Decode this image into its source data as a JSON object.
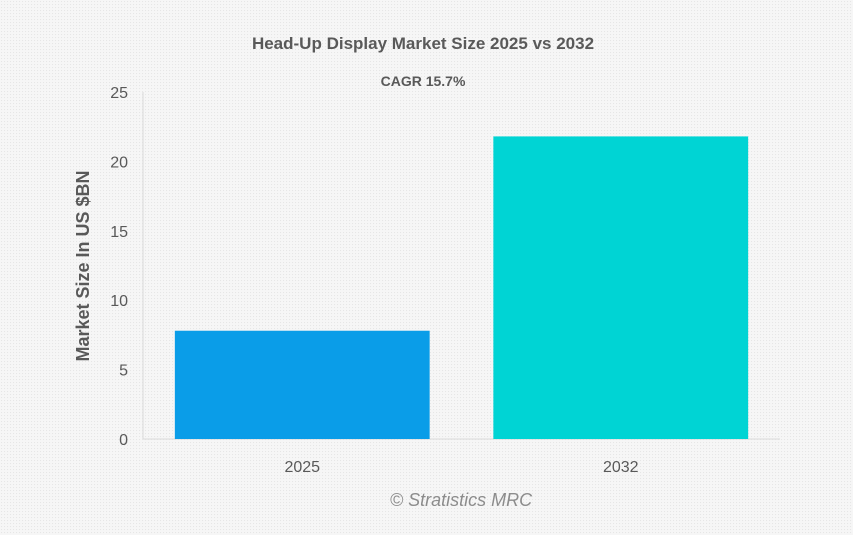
{
  "chart_data": {
    "type": "bar",
    "title": "Head-Up Display Market Size 2025 vs 2032",
    "subtitle": "CAGR 15.7%",
    "xlabel": "",
    "ylabel": "Market Size In US $BN",
    "categories": [
      "2025",
      "2032"
    ],
    "values": [
      7.8,
      21.8
    ],
    "bar_colors": [
      "#0a9de8",
      "#00d4d4"
    ],
    "ylim": [
      0,
      25
    ],
    "yticks": [
      0,
      5,
      10,
      15,
      20,
      25
    ],
    "grid": false,
    "legend": "none"
  },
  "watermark": "© Stratistics MRC"
}
